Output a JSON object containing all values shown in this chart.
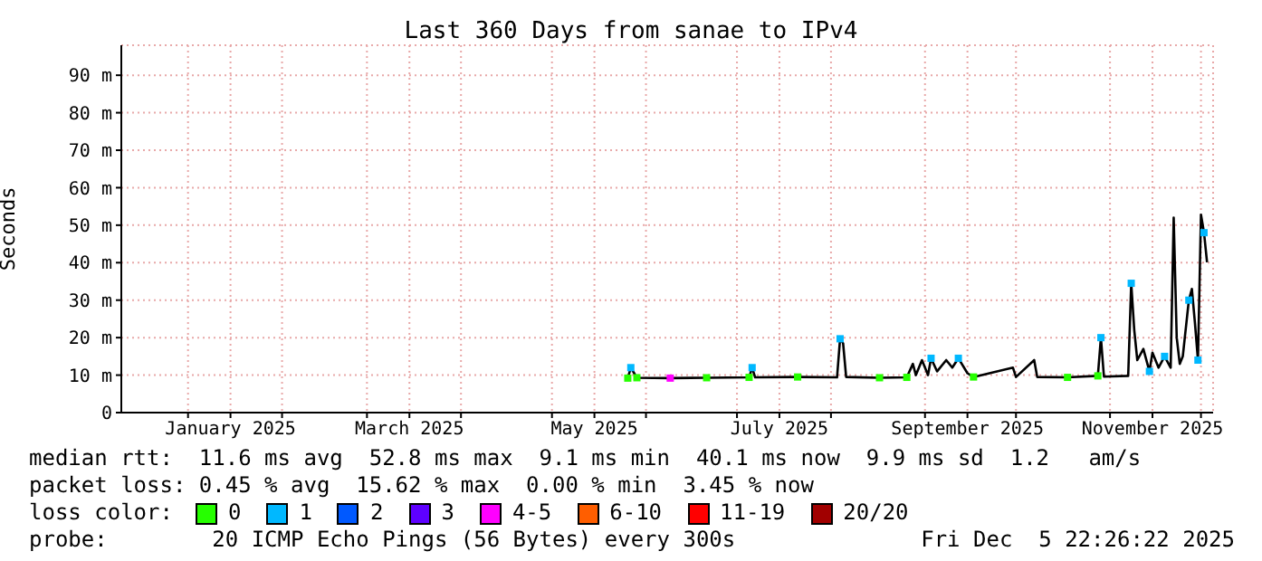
{
  "chart_data": {
    "type": "line",
    "title": "Last 360 Days from sanae to IPv4",
    "ylabel": "Seconds",
    "xlim": [
      "2024-12-10",
      "2025-12-05"
    ],
    "xticks": [
      {
        "value": "2025-01-01",
        "label": null
      },
      {
        "value": "2025-01-15",
        "label": "January 2025"
      },
      {
        "value": "2025-02-01",
        "label": null
      },
      {
        "value": "2025-03-01",
        "label": null
      },
      {
        "value": "2025-03-15",
        "label": "March 2025"
      },
      {
        "value": "2025-04-01",
        "label": null
      },
      {
        "value": "2025-05-01",
        "label": null
      },
      {
        "value": "2025-05-15",
        "label": "May 2025"
      },
      {
        "value": "2025-06-01",
        "label": null
      },
      {
        "value": "2025-07-01",
        "label": null
      },
      {
        "value": "2025-07-15",
        "label": "July 2025"
      },
      {
        "value": "2025-08-01",
        "label": null
      },
      {
        "value": "2025-09-01",
        "label": null
      },
      {
        "value": "2025-09-15",
        "label": "September 2025"
      },
      {
        "value": "2025-10-01",
        "label": null
      },
      {
        "value": "2025-11-01",
        "label": null
      },
      {
        "value": "2025-11-15",
        "label": "November 2025"
      },
      {
        "value": "2025-12-01",
        "label": null
      }
    ],
    "ylim": [
      0,
      98
    ],
    "yticks": [
      0,
      {
        "value": 10,
        "label": "10 m"
      },
      {
        "value": 20,
        "label": "20 m"
      },
      {
        "value": 30,
        "label": "30 m"
      },
      {
        "value": 40,
        "label": "40 m"
      },
      {
        "value": 50,
        "label": "50 m"
      },
      {
        "value": 60,
        "label": "60 m"
      },
      {
        "value": 70,
        "label": "70 m"
      },
      {
        "value": 80,
        "label": "80 m"
      },
      {
        "value": 90,
        "label": "90 m"
      }
    ],
    "grid": true,
    "legend": "bottom",
    "legend_title": "loss color:",
    "series": [
      {
        "type": "line",
        "color": "#000000",
        "x": [
          "2025-05-26",
          "2025-05-27",
          "2025-05-29",
          "2025-06-09",
          "2025-06-21",
          "2025-07-05",
          "2025-07-06",
          "2025-07-07",
          "2025-07-21",
          "2025-08-03",
          "2025-08-04",
          "2025-08-05",
          "2025-08-06",
          "2025-08-17",
          "2025-08-26",
          "2025-08-28",
          "2025-08-29",
          "2025-08-31",
          "2025-09-02",
          "2025-09-03",
          "2025-09-05",
          "2025-09-08",
          "2025-09-10",
          "2025-09-12",
          "2025-09-15",
          "2025-09-17",
          "2025-09-30",
          "2025-10-01",
          "2025-10-07",
          "2025-10-08",
          "2025-10-18",
          "2025-10-28",
          "2025-10-29",
          "2025-10-30",
          "2025-11-07",
          "2025-11-08",
          "2025-11-09",
          "2025-11-10",
          "2025-11-12",
          "2025-11-14",
          "2025-11-15",
          "2025-11-17",
          "2025-11-19",
          "2025-11-21",
          "2025-11-22",
          "2025-11-23",
          "2025-11-24",
          "2025-11-25",
          "2025-11-27",
          "2025-11-28",
          "2025-11-29",
          "2025-11-30",
          "2025-12-01",
          "2025-12-02",
          "2025-12-03"
        ],
        "values": [
          9.2,
          12,
          9.3,
          9.2,
          9.3,
          9.4,
          12,
          9.4,
          9.5,
          9.4,
          19.7,
          18.5,
          9.5,
          9.3,
          9.4,
          13,
          10,
          14,
          10,
          14.5,
          11,
          14,
          12,
          14.5,
          10.5,
          9.5,
          12,
          9.5,
          14,
          9.5,
          9.4,
          9.8,
          20,
          9.6,
          9.8,
          34.5,
          22,
          14,
          17,
          11,
          16,
          12,
          15,
          12,
          52,
          20,
          13,
          15,
          30,
          33,
          24,
          14,
          52.8,
          48,
          40.1
        ]
      },
      {
        "name": "0",
        "type": "scatter",
        "marker": "square",
        "color": "#26ff00",
        "x": [
          "2025-05-26",
          "2025-05-29",
          "2025-06-21",
          "2025-07-05",
          "2025-07-21",
          "2025-08-17",
          "2025-08-26",
          "2025-09-17",
          "2025-10-18",
          "2025-10-28"
        ],
        "values": [
          9.2,
          9.3,
          9.3,
          9.4,
          9.5,
          9.3,
          9.4,
          9.5,
          9.4,
          9.8
        ]
      },
      {
        "name": "1",
        "type": "scatter",
        "marker": "square",
        "color": "#00b8ff",
        "x": [
          "2025-05-27",
          "2025-07-06",
          "2025-08-04",
          "2025-09-03",
          "2025-09-12",
          "2025-10-29",
          "2025-11-08",
          "2025-11-14",
          "2025-11-19",
          "2025-11-27",
          "2025-11-30",
          "2025-12-02"
        ],
        "values": [
          12,
          12,
          19.7,
          14.5,
          14.5,
          20,
          34.5,
          11,
          15,
          30,
          14,
          48
        ]
      },
      {
        "name": "2",
        "type": "scatter",
        "marker": "square",
        "color": "#0059ff"
      },
      {
        "name": "3",
        "type": "scatter",
        "marker": "square",
        "color": "#5e00ff"
      },
      {
        "name": "4-5",
        "type": "scatter",
        "marker": "square",
        "color": "#ff00ff",
        "x": [
          "2025-06-09"
        ],
        "values": [
          9.2
        ]
      },
      {
        "name": "6-10",
        "type": "scatter",
        "marker": "square",
        "color": "#ff5e00"
      },
      {
        "name": "11-19",
        "type": "scatter",
        "marker": "square",
        "color": "#ff0000"
      },
      {
        "name": "20/20",
        "type": "scatter",
        "marker": "square",
        "color": "#a10000"
      }
    ],
    "annotations": [
      "median rtt:  11.6 ms avg  52.8 ms max  9.1 ms min  40.1 ms now  9.9 ms sd  1.2   am/s",
      "packet loss: 0.45 % avg  15.62 % max  0.00 % min  3.45 % now",
      "probe:        20 ICMP Echo Pings (56 Bytes) every 300s",
      "Fri Dec  5 22:26:22 2025"
    ]
  }
}
